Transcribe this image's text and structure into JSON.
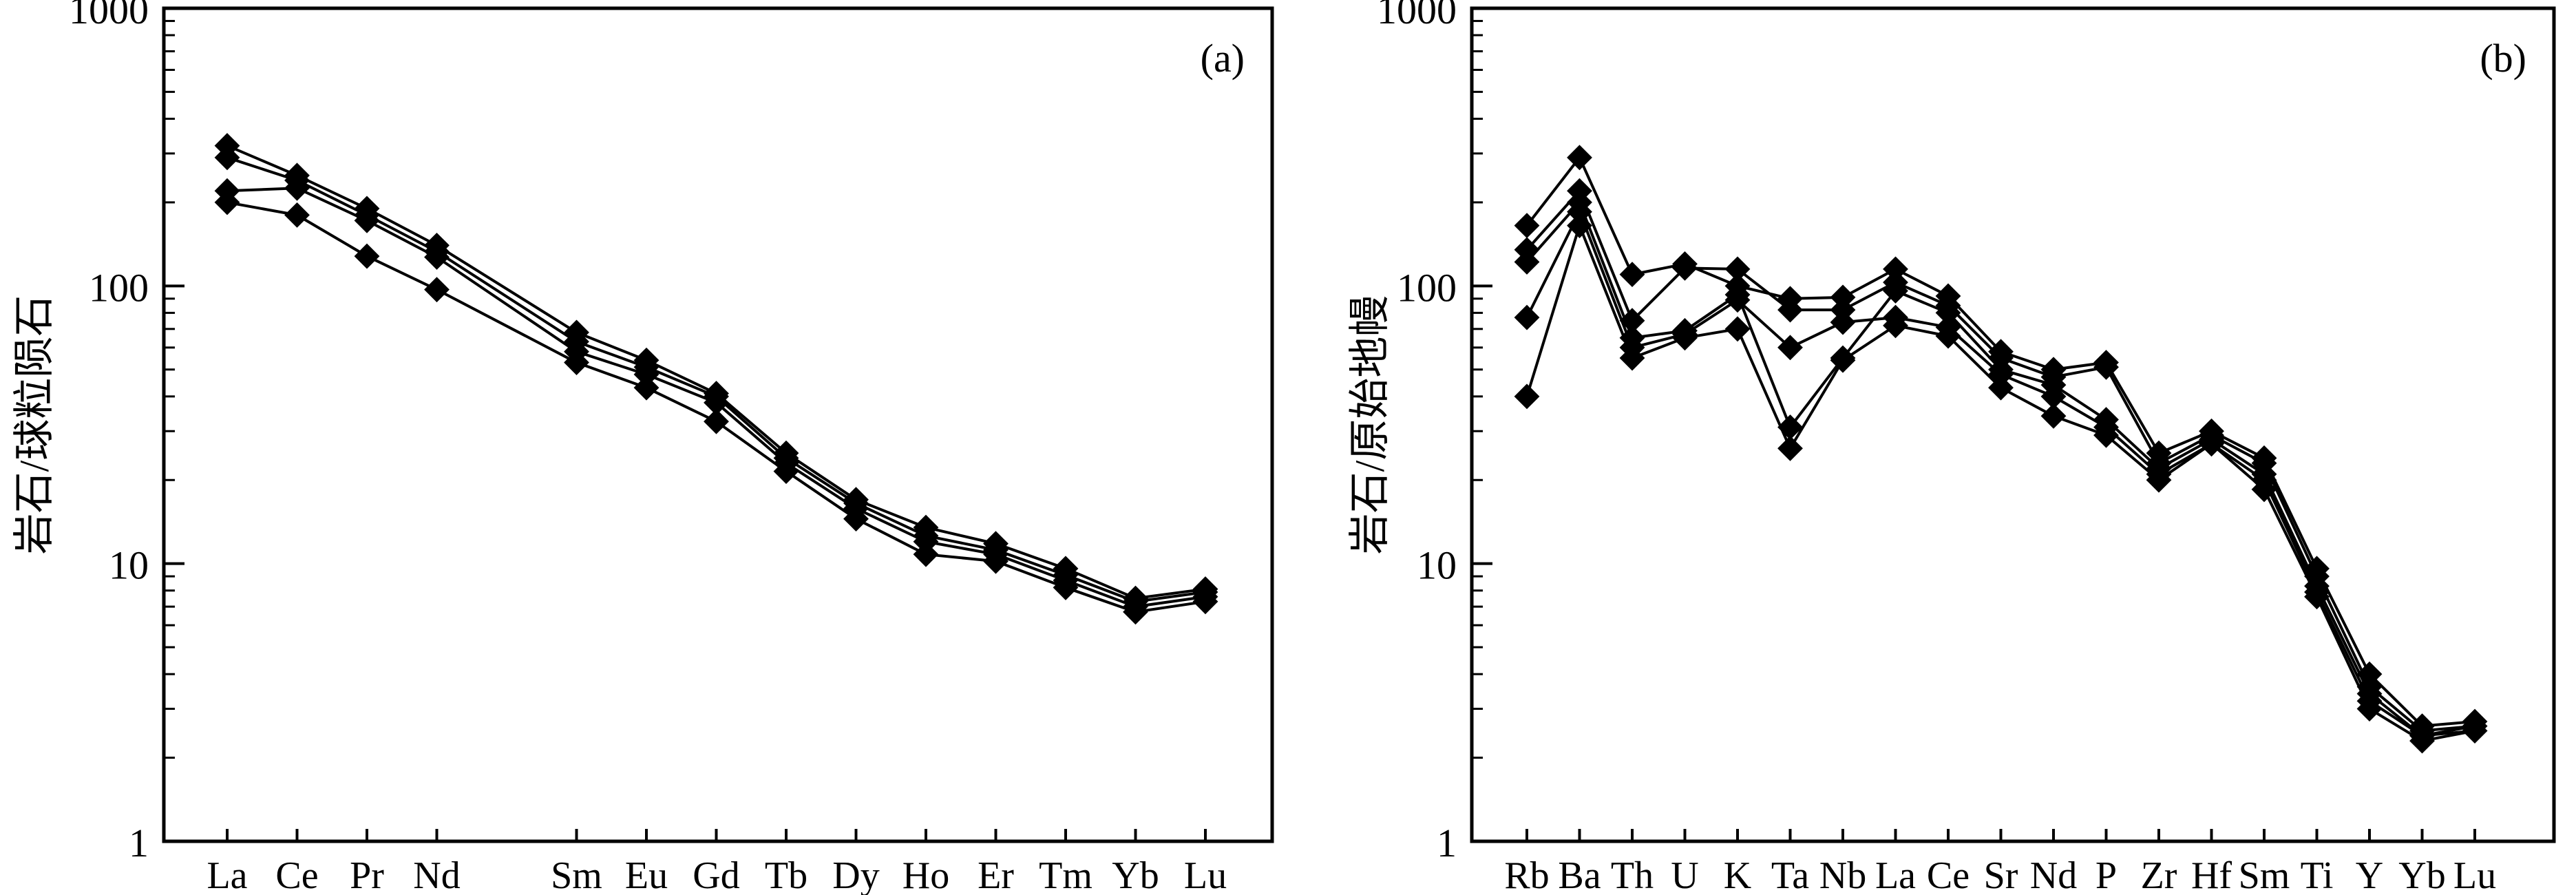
{
  "chart_data": [
    {
      "panel_label": "(a)",
      "type": "line",
      "ylabel": "岩石/球粒陨石",
      "yscale": "log",
      "ylim": [
        1,
        1000
      ],
      "yticks": [
        "1",
        "10",
        "100",
        "1000"
      ],
      "categories": [
        "La",
        "Ce",
        "Pr",
        "Nd",
        "Sm",
        "Eu",
        "Gd",
        "Tb",
        "Dy",
        "Ho",
        "Er",
        "Tm",
        "Yb",
        "Lu"
      ],
      "category_positions": [
        0,
        1,
        2,
        3,
        5,
        6,
        7,
        8,
        9,
        10,
        11,
        12,
        13,
        14
      ],
      "series": [
        {
          "values": [
            320,
            250,
            190,
            140,
            68,
            54,
            41,
            25,
            17,
            13.5,
            11.8,
            9.6,
            7.5,
            8.1
          ]
        },
        {
          "values": [
            290,
            240,
            180,
            133,
            63,
            51,
            40,
            24,
            16.5,
            12.6,
            11.2,
            9.1,
            7.3,
            7.9
          ]
        },
        {
          "values": [
            220,
            225,
            172,
            127,
            58,
            48,
            38,
            23,
            15.8,
            12.0,
            10.8,
            8.7,
            7.0,
            7.6
          ]
        },
        {
          "values": [
            200,
            180,
            128,
            97,
            53,
            43,
            32.5,
            21.5,
            14.5,
            10.8,
            10.2,
            8.2,
            6.7,
            7.3
          ]
        }
      ]
    },
    {
      "panel_label": "(b)",
      "type": "line",
      "ylabel": "岩石/原始地幔",
      "yscale": "log",
      "ylim": [
        1,
        1000
      ],
      "yticks": [
        "1",
        "10",
        "100",
        "1000"
      ],
      "categories": [
        "Rb",
        "Ba",
        "Th",
        "U",
        "K",
        "Ta",
        "Nb",
        "La",
        "Ce",
        "Sr",
        "Nd",
        "P",
        "Zr",
        "Hf",
        "Sm",
        "Ti",
        "Y",
        "Yb",
        "Lu"
      ],
      "category_positions": [
        0,
        1,
        2,
        3,
        4,
        5,
        6,
        7,
        8,
        9,
        10,
        11,
        12,
        13,
        14,
        15,
        16,
        17,
        18
      ],
      "series": [
        {
          "values": [
            165,
            290,
            110,
            120,
            100,
            90,
            91,
            115,
            92,
            58,
            50,
            53,
            25,
            30,
            24,
            9.6,
            4.0,
            2.6,
            2.7
          ]
        },
        {
          "values": [
            135,
            220,
            75,
            116,
            115,
            82,
            82,
            103,
            85,
            55,
            47,
            51,
            23,
            29,
            23,
            9.0,
            3.6,
            2.5,
            2.6
          ]
        },
        {
          "values": [
            122,
            200,
            65,
            69,
            93,
            31,
            55,
            96,
            80,
            50,
            44,
            33,
            22,
            28,
            21,
            8.3,
            3.4,
            2.4,
            2.6
          ]
        },
        {
          "values": [
            77,
            185,
            60,
            67,
            89,
            60,
            74,
            77,
            71,
            48,
            40,
            31,
            21,
            27,
            20,
            7.9,
            3.2,
            2.4,
            2.5
          ]
        },
        {
          "values": [
            40,
            165,
            55,
            65,
            70,
            26,
            54,
            72,
            66,
            43,
            34,
            29,
            20,
            27,
            18.5,
            7.6,
            3.0,
            2.3,
            2.5
          ]
        }
      ]
    }
  ]
}
